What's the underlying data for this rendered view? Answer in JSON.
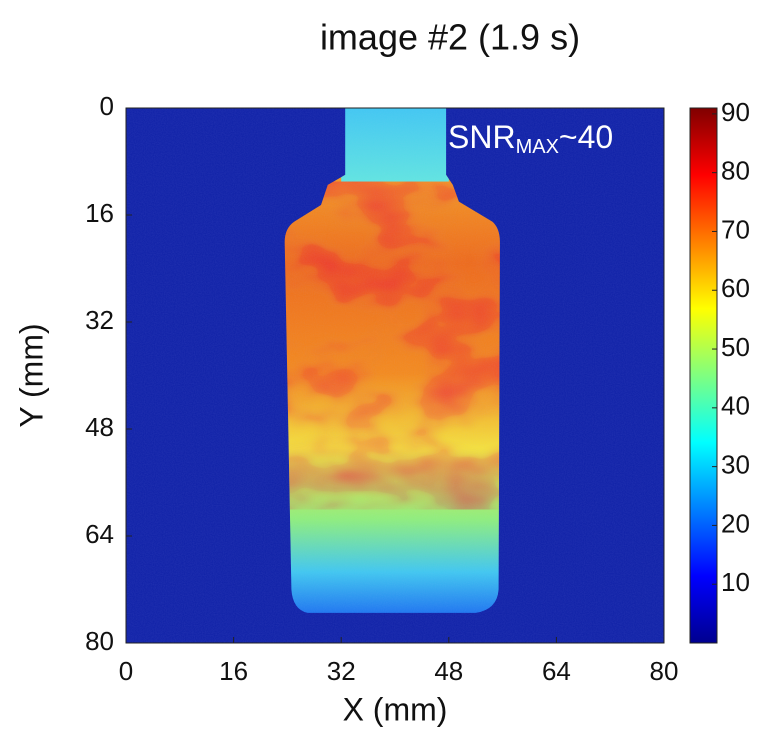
{
  "chart_data": {
    "type": "heatmap",
    "title": "image #2 (1.9 s)",
    "xlabel": "X (mm)",
    "ylabel": "Y (mm)",
    "xlim": [
      0,
      80
    ],
    "xticks": [
      0,
      16,
      32,
      48,
      64,
      80
    ],
    "ylim": [
      80,
      0
    ],
    "yticks": [
      0,
      16,
      32,
      48,
      64,
      80
    ],
    "colorbar": {
      "colormap": "jet",
      "lim": [
        0,
        91
      ],
      "ticks": [
        10,
        20,
        30,
        40,
        50,
        60,
        70,
        80,
        90
      ]
    },
    "annotation": {
      "text": "SNR",
      "subscript": "MAX",
      "suffix": "~40"
    }
  }
}
